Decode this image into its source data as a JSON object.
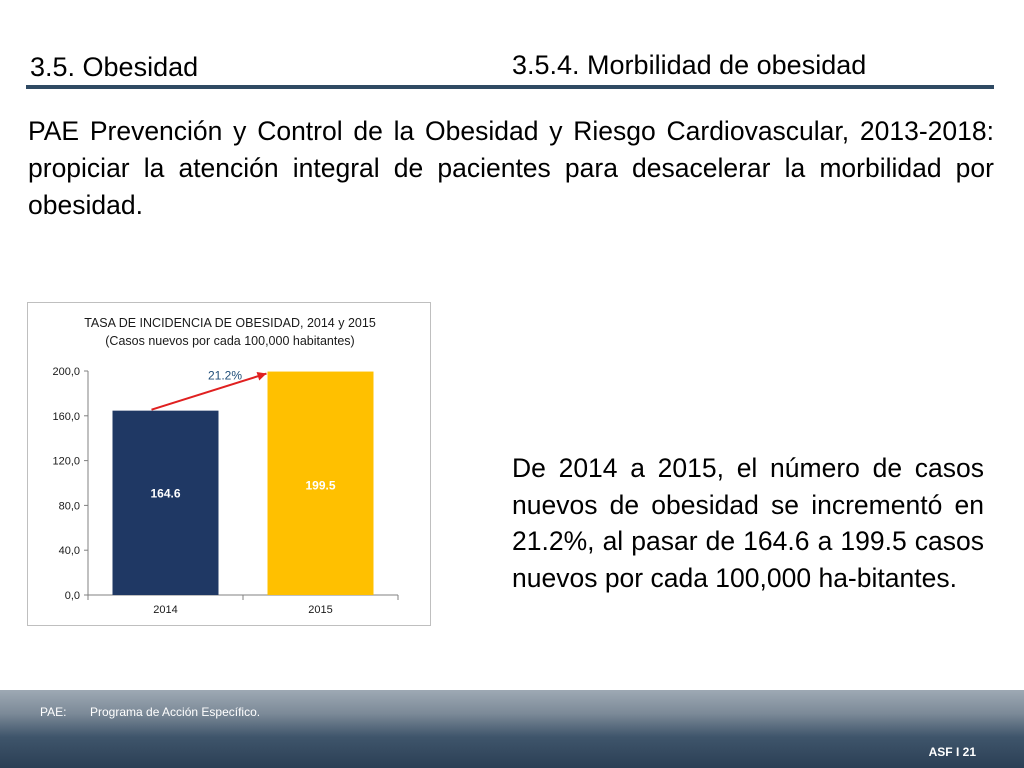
{
  "header": {
    "section_title": "3.5. Obesidad",
    "subsection_title": "3.5.4. Morbilidad de obesidad"
  },
  "intro_text": "PAE Prevención y Control de la Obesidad y Riesgo Cardiovascular, 2013-2018: propiciar la atención integral de pacientes para desacelerar la morbilidad  por obesidad.",
  "summary_text": "De 2014 a 2015, el número de casos nuevos de obesidad se incrementó en 21.2%, al pasar de 164.6 a 199.5 casos nuevos por cada 100,000 ha-bitantes.",
  "footer": {
    "abbr": "PAE:",
    "abbr_meaning": "Programa de Acción Específico.",
    "page_label": "ASF I 21"
  },
  "chart_data": {
    "type": "bar",
    "title": "TASA DE INCIDENCIA DE OBESIDAD, 2014 y 2015",
    "subtitle": "(Casos nuevos por cada 100,000 habitantes)",
    "categories": [
      "2014",
      "2015"
    ],
    "values": [
      164.6,
      199.5
    ],
    "value_labels": [
      "164.6",
      "199.5"
    ],
    "bar_colors": [
      "#1f3864",
      "#ffc000"
    ],
    "label_colors": [
      "#ffffff",
      "#ffffff"
    ],
    "ylim": [
      0,
      200
    ],
    "yticks": [
      0,
      40,
      80,
      120,
      160,
      200
    ],
    "ytick_labels": [
      "0,0",
      "40,0",
      "80,0",
      "120,0",
      "160,0",
      "200,0"
    ],
    "grid": false,
    "legend": "none",
    "annotation": {
      "text": "21.2%",
      "color": "#1f4e79",
      "arrow_color": "#e02020"
    }
  }
}
